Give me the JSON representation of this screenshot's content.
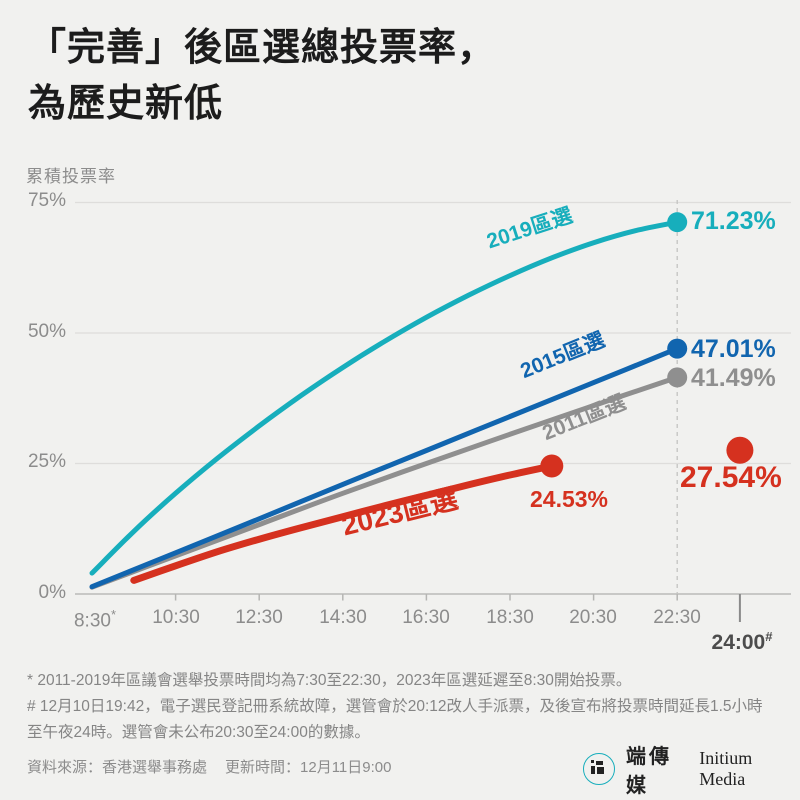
{
  "title_line1": "「完善」後區選總投票率，",
  "title_line2": "為歷史新低",
  "footnote_star": "* 2011-2019年區議會選舉投票時間均為7:30至22:30，2023年區選延遲至8:30開始投票。",
  "footnote_hash": "# 12月10日19:42，電子選民登記冊系統故障，選管會於20:12改人手派票，及後宣布將投票時間延長1.5小時至午夜24時。選管會未公布20:30至24:00的數據。",
  "source_label": "資料來源：香港選舉事務處",
  "updated_label": "更新時間：12月11日9:00",
  "logo": {
    "cjk": "端傳媒",
    "latin": "Initium Media"
  },
  "chart_data": {
    "type": "line",
    "title": "「完善」後區選總投票率，為歷史新低",
    "ylabel": "累積投票率",
    "xlabel": "",
    "ylim": [
      0,
      75
    ],
    "grid": "horizontal",
    "legend_position": "inline-labels",
    "colors": {
      "teal": "#17aebc",
      "blue": "#1165af",
      "gray": "#8f8f8f",
      "red": "#d5311f",
      "gridline": "#dedddb",
      "axis": "#c2c2c0",
      "dashed_guide": "#c4c4c2",
      "tick": "#b5b5b3"
    },
    "yticks": [
      {
        "value": 75,
        "label": "75%"
      },
      {
        "value": 50,
        "label": "50%"
      },
      {
        "value": 25,
        "label": "25%"
      },
      {
        "value": 0,
        "label": "0%"
      }
    ],
    "xticks": [
      {
        "hour": 8.5,
        "label": "8:30",
        "marker": "*",
        "tick": false
      },
      {
        "hour": 10.5,
        "label": "10:30"
      },
      {
        "hour": 12.5,
        "label": "12:30"
      },
      {
        "hour": 14.5,
        "label": "14:30"
      },
      {
        "hour": 16.5,
        "label": "16:30"
      },
      {
        "hour": 18.5,
        "label": "18:30"
      },
      {
        "hour": 20.5,
        "label": "20:30"
      },
      {
        "hour": 22.5,
        "label": "22:30"
      },
      {
        "hour": 24.0,
        "label": "24:00",
        "marker": "#",
        "emphasis": true
      }
    ],
    "dashed_guide_hour": 22.5,
    "series": [
      {
        "name": "2011區選",
        "color": "#8f8f8f",
        "width": 5,
        "dot_radius": 10,
        "end_label": "41.49%",
        "points": [
          [
            8.5,
            1.3
          ],
          [
            10.5,
            7.3
          ],
          [
            12.5,
            13.3
          ],
          [
            14.5,
            19.3
          ],
          [
            16.5,
            25.0
          ],
          [
            18.5,
            30.6
          ],
          [
            20.5,
            36.1
          ],
          [
            22.5,
            41.49
          ]
        ]
      },
      {
        "name": "2015區選",
        "color": "#1165af",
        "width": 5,
        "dot_radius": 10,
        "end_label": "47.01%",
        "points": [
          [
            8.5,
            1.4
          ],
          [
            10.5,
            7.9
          ],
          [
            12.5,
            14.4
          ],
          [
            14.5,
            21.0
          ],
          [
            16.5,
            27.5
          ],
          [
            18.5,
            34.0
          ],
          [
            20.5,
            40.5
          ],
          [
            22.5,
            47.01
          ]
        ]
      },
      {
        "name": "2019區選",
        "color": "#17aebc",
        "width": 5,
        "dot_radius": 10,
        "end_label": "71.23%",
        "points": [
          [
            8.5,
            4.0
          ],
          [
            9.5,
            12.0
          ],
          [
            10.5,
            19.3
          ],
          [
            11.5,
            26.0
          ],
          [
            12.5,
            32.2
          ],
          [
            13.5,
            38.0
          ],
          [
            14.5,
            43.4
          ],
          [
            15.5,
            48.4
          ],
          [
            16.5,
            53.0
          ],
          [
            17.5,
            57.2
          ],
          [
            18.5,
            61.0
          ],
          [
            19.5,
            64.4
          ],
          [
            20.5,
            67.3
          ],
          [
            21.5,
            69.6
          ],
          [
            22.5,
            71.23
          ]
        ]
      },
      {
        "name": "2023區選",
        "color": "#d5311f",
        "width": 7,
        "dot_radius": 11.5,
        "end_label": "24.53%",
        "points": [
          [
            9.5,
            2.6
          ],
          [
            10.5,
            5.4
          ],
          [
            11.5,
            8.1
          ],
          [
            12.5,
            10.5
          ],
          [
            13.5,
            12.7
          ],
          [
            14.5,
            14.8
          ],
          [
            15.5,
            16.9
          ],
          [
            16.5,
            18.9
          ],
          [
            17.5,
            20.9
          ],
          [
            18.5,
            22.8
          ],
          [
            19.5,
            24.53
          ]
        ],
        "extra_point": {
          "hour": 24.0,
          "value": 27.54,
          "label": "27.54%",
          "radius": 13.5
        }
      }
    ]
  }
}
